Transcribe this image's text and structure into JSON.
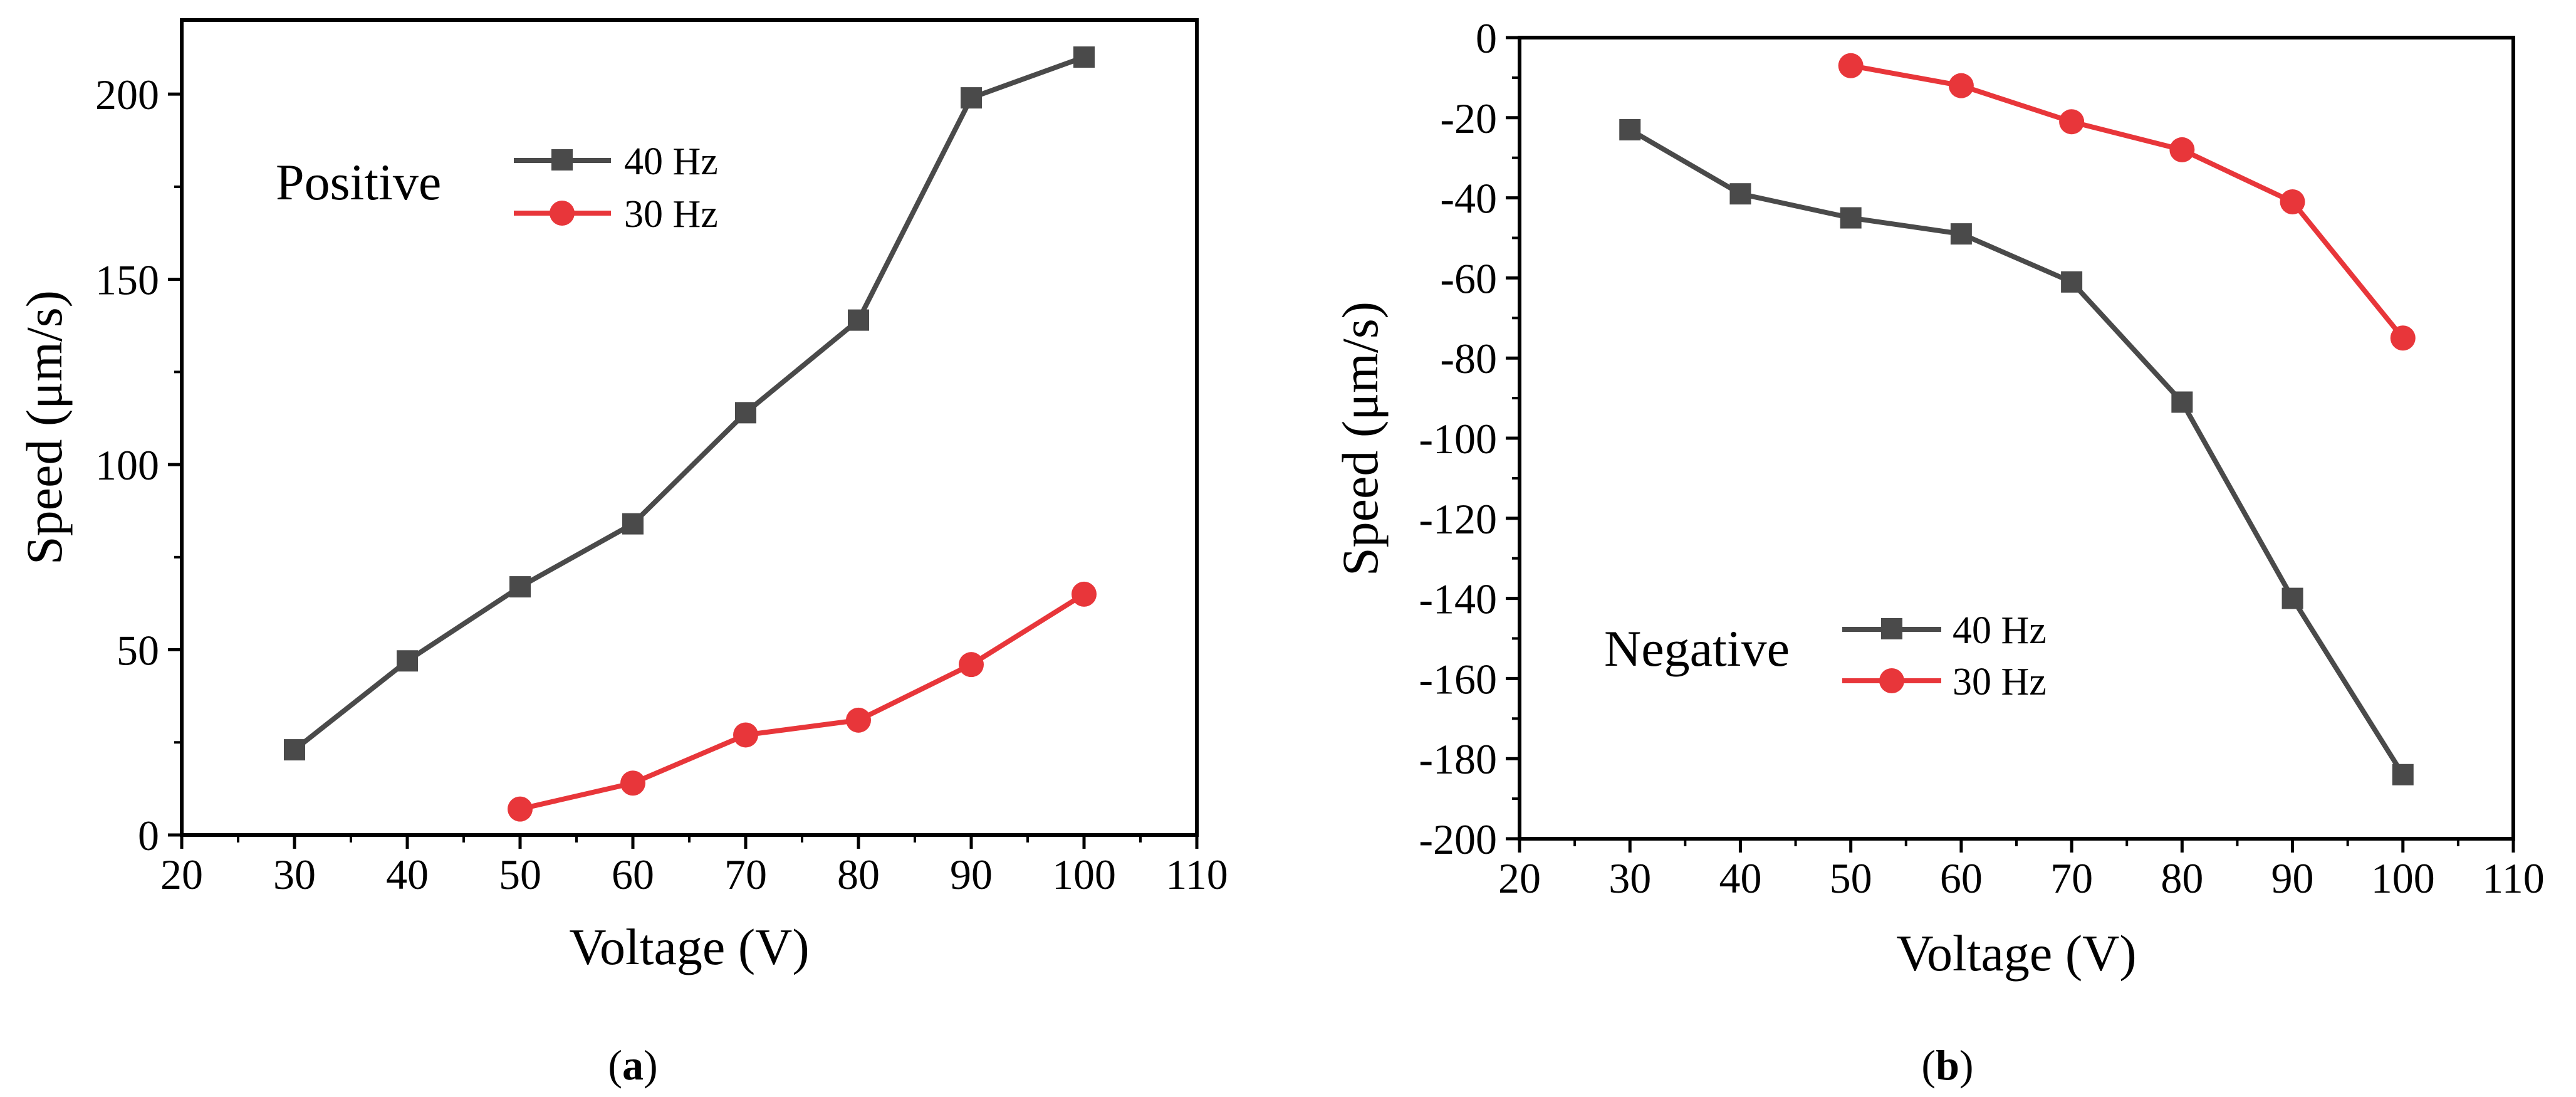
{
  "chart_data": [
    {
      "type": "line",
      "panel": "a",
      "caption_letter": "a",
      "annotation": "Positive",
      "xlabel": "Voltage (V)",
      "ylabel": "Speed (μm/s)",
      "xlim": [
        20,
        110
      ],
      "ylim": [
        0,
        220
      ],
      "xticks": [
        20,
        30,
        40,
        50,
        60,
        70,
        80,
        90,
        100,
        110
      ],
      "yticks": [
        0,
        50,
        100,
        150,
        200
      ],
      "legend_position": "top-center",
      "grid": false,
      "series": [
        {
          "name": "40 Hz",
          "color": "#4a4a4a",
          "marker": "square",
          "x": [
            30,
            40,
            50,
            60,
            70,
            80,
            90,
            100
          ],
          "y": [
            23,
            47,
            67,
            84,
            114,
            139,
            199,
            210
          ]
        },
        {
          "name": "30 Hz",
          "color": "#e8363a",
          "marker": "circle",
          "x": [
            50,
            60,
            70,
            80,
            90,
            100
          ],
          "y": [
            7,
            14,
            27,
            31,
            46,
            65
          ]
        }
      ]
    },
    {
      "type": "line",
      "panel": "b",
      "caption_letter": "b",
      "annotation": "Negative",
      "xlabel": "Voltage (V)",
      "ylabel": "Speed (μm/s)",
      "xlim": [
        20,
        110
      ],
      "ylim": [
        -200,
        0
      ],
      "xticks": [
        20,
        30,
        40,
        50,
        60,
        70,
        80,
        90,
        100,
        110
      ],
      "yticks": [
        0,
        -20,
        -40,
        -60,
        -80,
        -100,
        -120,
        -140,
        -160,
        -180,
        -200
      ],
      "legend_position": "bottom-center",
      "grid": false,
      "series": [
        {
          "name": "40 Hz",
          "color": "#4a4a4a",
          "marker": "square",
          "x": [
            30,
            40,
            50,
            60,
            70,
            80,
            90,
            100
          ],
          "y": [
            -23,
            -39,
            -45,
            -49,
            -61,
            -91,
            -140,
            -184
          ]
        },
        {
          "name": "30 Hz",
          "color": "#e8363a",
          "marker": "circle",
          "x": [
            50,
            60,
            70,
            80,
            90,
            100
          ],
          "y": [
            -7,
            -12,
            -21,
            -28,
            -41,
            -75
          ]
        }
      ]
    }
  ]
}
